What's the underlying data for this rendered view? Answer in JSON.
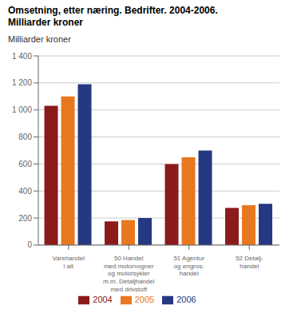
{
  "chart_data": {
    "type": "bar",
    "title": "Omsetning, etter næring. Bedrifter. 2004-2006.",
    "subtitle": "Milliarder kroner",
    "ylabel": "Milliarder kroner",
    "categories": [
      "Varehandel\ni alt",
      "50 Handel\nmed motorvogner\nog motorsykler\nm.m. Detaljhandel\nmed drivstoff",
      "51 Agentur\nog engros-\nhandel",
      "52 Detalj-\nhandel"
    ],
    "series": [
      {
        "name": "2004",
        "color": "#8B1A1A",
        "values": [
          1030,
          175,
          600,
          275
        ]
      },
      {
        "name": "2005",
        "color": "#E87820",
        "values": [
          1100,
          185,
          650,
          295
        ]
      },
      {
        "name": "2006",
        "color": "#253882",
        "values": [
          1190,
          200,
          700,
          305
        ]
      }
    ],
    "ylim": [
      0,
      1400
    ],
    "yticks": [
      0,
      200,
      400,
      600,
      800,
      {
        "value": 1000,
        "label": "1 000"
      },
      {
        "value": 1200,
        "label": "1 200"
      },
      {
        "value": 1400,
        "label": "1 400"
      }
    ],
    "grid": true,
    "legend": "bottom"
  }
}
